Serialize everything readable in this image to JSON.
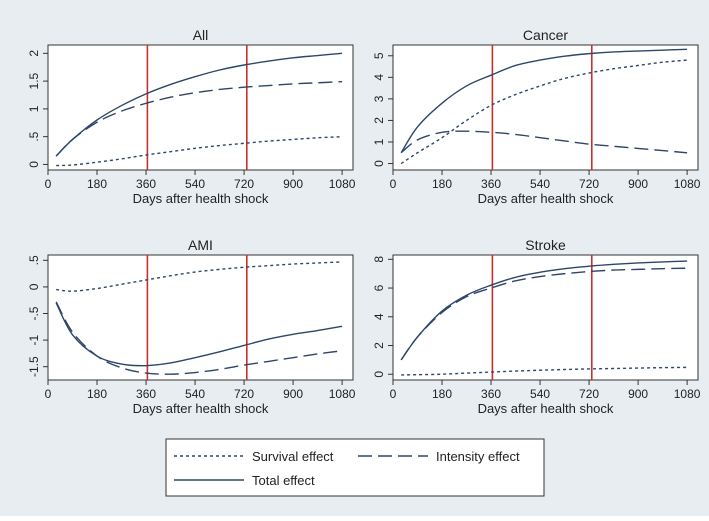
{
  "chart_data": [
    {
      "type": "line",
      "title": "All",
      "xlabel": "Days after health shock",
      "ylabel": "",
      "xlim": [
        0,
        1120
      ],
      "ylim": [
        -0.1,
        2.15
      ],
      "xticks": [
        0,
        180,
        360,
        540,
        720,
        900,
        1080
      ],
      "yticks": [
        0,
        0.5,
        1,
        1.5,
        2
      ],
      "ytick_labels": [
        "0",
        ".5",
        "1",
        "1.5",
        "2"
      ],
      "vlines": [
        365,
        730
      ],
      "x": [
        30,
        90,
        180,
        270,
        360,
        450,
        540,
        630,
        720,
        810,
        900,
        990,
        1080
      ],
      "series": [
        {
          "name": "Survival effect",
          "style": "dot",
          "values": [
            -0.02,
            -0.01,
            0.04,
            0.1,
            0.17,
            0.23,
            0.29,
            0.34,
            0.38,
            0.42,
            0.45,
            0.48,
            0.5
          ]
        },
        {
          "name": "Intensity effect",
          "style": "dash",
          "values": [
            0.15,
            0.45,
            0.76,
            0.96,
            1.1,
            1.21,
            1.29,
            1.35,
            1.39,
            1.42,
            1.45,
            1.47,
            1.49
          ]
        },
        {
          "name": "Total effect",
          "style": "solid",
          "values": [
            0.15,
            0.45,
            0.8,
            1.06,
            1.27,
            1.44,
            1.58,
            1.7,
            1.79,
            1.86,
            1.92,
            1.96,
            2.0
          ]
        }
      ]
    },
    {
      "type": "line",
      "title": "Cancer",
      "xlabel": "Days after health shock",
      "ylabel": "",
      "xlim": [
        0,
        1120
      ],
      "ylim": [
        -0.3,
        5.5
      ],
      "xticks": [
        0,
        180,
        360,
        540,
        720,
        900,
        1080
      ],
      "yticks": [
        0,
        1,
        2,
        3,
        4,
        5
      ],
      "ytick_labels": [
        "0",
        "1",
        "2",
        "3",
        "4",
        "5"
      ],
      "vlines": [
        365,
        730
      ],
      "x": [
        30,
        90,
        180,
        270,
        360,
        450,
        540,
        630,
        720,
        810,
        900,
        990,
        1080
      ],
      "series": [
        {
          "name": "Survival effect",
          "style": "dot",
          "values": [
            0.0,
            0.5,
            1.2,
            2.0,
            2.7,
            3.2,
            3.6,
            3.95,
            4.2,
            4.4,
            4.55,
            4.7,
            4.8
          ]
        },
        {
          "name": "Intensity effect",
          "style": "dash",
          "values": [
            0.5,
            1.1,
            1.45,
            1.5,
            1.45,
            1.35,
            1.2,
            1.05,
            0.9,
            0.8,
            0.7,
            0.6,
            0.5
          ]
        },
        {
          "name": "Total effect",
          "style": "solid",
          "values": [
            0.5,
            1.7,
            2.8,
            3.6,
            4.1,
            4.55,
            4.8,
            4.98,
            5.1,
            5.18,
            5.22,
            5.26,
            5.3
          ]
        }
      ]
    },
    {
      "type": "line",
      "title": "AMI",
      "xlabel": "Days after health shock",
      "ylabel": "",
      "xlim": [
        0,
        1120
      ],
      "ylim": [
        -1.75,
        0.6
      ],
      "xticks": [
        0,
        180,
        360,
        540,
        720,
        900,
        1080
      ],
      "yticks": [
        -1.5,
        -1,
        -0.5,
        0,
        0.5
      ],
      "ytick_labels": [
        "-1.5",
        "-1",
        "-.5",
        "0",
        ".5"
      ],
      "vlines": [
        365,
        730
      ],
      "x": [
        30,
        90,
        180,
        270,
        360,
        450,
        540,
        630,
        720,
        810,
        900,
        990,
        1080
      ],
      "series": [
        {
          "name": "Survival effect",
          "style": "dot",
          "values": [
            -0.05,
            -0.08,
            -0.03,
            0.05,
            0.13,
            0.21,
            0.28,
            0.33,
            0.37,
            0.4,
            0.43,
            0.45,
            0.47
          ]
        },
        {
          "name": "Intensity effect",
          "style": "dash",
          "values": [
            -0.28,
            -0.85,
            -1.3,
            -1.52,
            -1.62,
            -1.64,
            -1.61,
            -1.55,
            -1.47,
            -1.4,
            -1.33,
            -1.26,
            -1.2
          ]
        },
        {
          "name": "Total effect",
          "style": "solid",
          "values": [
            -0.3,
            -0.9,
            -1.3,
            -1.45,
            -1.48,
            -1.43,
            -1.33,
            -1.22,
            -1.1,
            -0.98,
            -0.89,
            -0.82,
            -0.74
          ]
        }
      ]
    },
    {
      "type": "line",
      "title": "Stroke",
      "xlabel": "Days after health shock",
      "ylabel": "",
      "xlim": [
        0,
        1120
      ],
      "ylim": [
        -0.4,
        8.3
      ],
      "xticks": [
        0,
        180,
        360,
        540,
        720,
        900,
        1080
      ],
      "yticks": [
        0,
        2,
        4,
        6,
        8
      ],
      "ytick_labels": [
        "0",
        "2",
        "4",
        "6",
        "8"
      ],
      "vlines": [
        365,
        730
      ],
      "x": [
        30,
        90,
        180,
        270,
        360,
        450,
        540,
        630,
        720,
        810,
        900,
        990,
        1080
      ],
      "series": [
        {
          "name": "Survival effect",
          "style": "dot",
          "values": [
            -0.05,
            -0.03,
            0.0,
            0.08,
            0.15,
            0.22,
            0.28,
            0.33,
            0.37,
            0.4,
            0.43,
            0.46,
            0.48
          ]
        },
        {
          "name": "Intensity effect",
          "style": "dash",
          "values": [
            1.0,
            2.6,
            4.3,
            5.4,
            6.0,
            6.5,
            6.8,
            7.0,
            7.15,
            7.25,
            7.3,
            7.35,
            7.38
          ]
        },
        {
          "name": "Total effect",
          "style": "solid",
          "values": [
            1.0,
            2.6,
            4.4,
            5.5,
            6.2,
            6.75,
            7.1,
            7.35,
            7.52,
            7.65,
            7.75,
            7.82,
            7.88
          ]
        }
      ]
    }
  ],
  "legend": {
    "items": [
      {
        "label": "Survival effect",
        "style": "dot"
      },
      {
        "label": "Intensity effect",
        "style": "dash"
      },
      {
        "label": "Total effect",
        "style": "solid"
      }
    ]
  },
  "colors": {
    "line": "#2d4669",
    "vline": "#c9302c",
    "background": "#e8edf1",
    "plot_bg": "#ffffff"
  }
}
